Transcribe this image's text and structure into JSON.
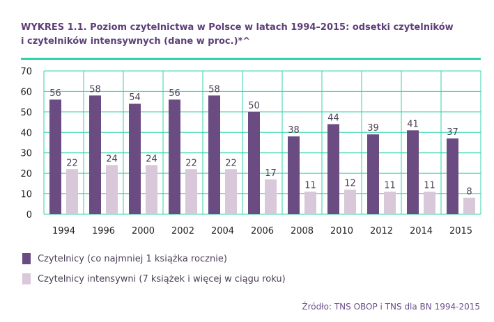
{
  "title_line1": "WYKRES 1.1. Poziom czytelnictwa w Polsce w latach 1994–2015: odsetki czytelników",
  "title_line2": "i czytelników intensywnych (dane w proc.)*^",
  "source": "Źródło: TNS OBOP i TNS dla BN 1994-2015",
  "colors": {
    "series1": "#6a4b82",
    "series2": "#d8c8d9",
    "grid": "#2fd3aa",
    "axis_text": "#222222",
    "label_text": "#4a3f55",
    "title": "#5c3f78"
  },
  "chart_data": {
    "type": "bar",
    "categories": [
      "1994",
      "1996",
      "2000",
      "2002",
      "2004",
      "2006",
      "2008",
      "2010",
      "2012",
      "2014",
      "2015"
    ],
    "series": [
      {
        "name": "Czytelnicy (co najmniej 1 książka rocznie)",
        "values": [
          56,
          58,
          54,
          56,
          58,
          50,
          38,
          44,
          39,
          41,
          37
        ]
      },
      {
        "name": "Czytelnicy intensywni (7 książek i więcej w ciągu roku)",
        "values": [
          22,
          24,
          24,
          22,
          22,
          17,
          11,
          12,
          11,
          11,
          8
        ]
      }
    ],
    "ylim": [
      0,
      70
    ],
    "yticks": [
      0,
      10,
      20,
      30,
      40,
      50,
      60,
      70
    ],
    "grid": true,
    "legend_position": "bottom-left"
  }
}
